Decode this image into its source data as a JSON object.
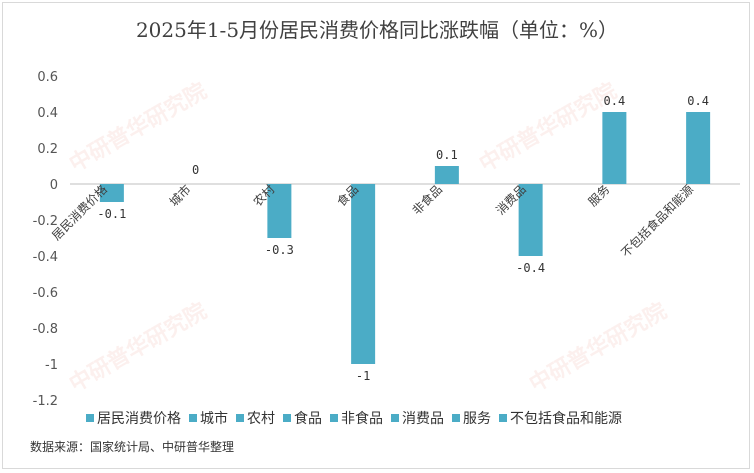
{
  "title": "2025年1-5月份居民消费价格同比涨跌幅（单位：%）",
  "source": "数据来源：国家统计局、中研普华整理",
  "watermark": "中研普华研究院",
  "colors": {
    "bar": "#4bacc6",
    "axis": "#bfbfbf"
  },
  "chart_data": {
    "type": "bar",
    "categories": [
      "居民消费价格",
      "城市",
      "农村",
      "食品",
      "非食品",
      "消费品",
      "服务",
      "不包括食品和能源"
    ],
    "series": [
      {
        "name": "",
        "values": [
          -0.1,
          0,
          -0.3,
          -1,
          0.1,
          -0.4,
          0.4,
          0.4
        ]
      }
    ],
    "data_labels": [
      "-0.1",
      "0",
      "-0.3",
      "-1",
      "0.1",
      "-0.4",
      "0.4",
      "0.4"
    ],
    "yticks": [
      "0.6",
      "0.4",
      "0.2",
      "0",
      "-0.2",
      "-0.4",
      "-0.6",
      "-0.8",
      "-1",
      "-1.2"
    ],
    "ylim": [
      -1.2,
      0.6
    ],
    "grid": false,
    "legend_placement": "bottom"
  }
}
